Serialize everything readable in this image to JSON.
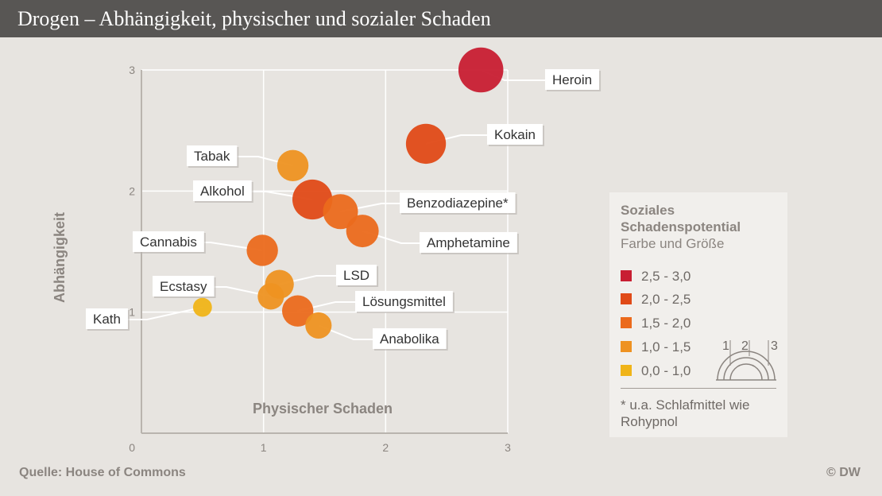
{
  "header": {
    "title": "Drogen – Abhängigkeit, physischer und sozialer Schaden"
  },
  "footer": {
    "source": "Quelle: House of Commons",
    "copyright": "© DW"
  },
  "legend": {
    "title": "Soziales Schadenspotential",
    "subtitle": "Farbe und Größe",
    "items": [
      {
        "label": "2,5 - 3,0",
        "color": "#c81e32"
      },
      {
        "label": "2,0 - 2,5",
        "color": "#e04a17"
      },
      {
        "label": "1,5 - 2,0",
        "color": "#eb6a1c"
      },
      {
        "label": "1,0 - 1,5",
        "color": "#ee9221"
      },
      {
        "label": "0,0 - 1,0",
        "color": "#f0b418"
      }
    ],
    "size_scale_labels": [
      "1",
      "2",
      "3"
    ],
    "note": "* u.a. Schlafmittel wie Rohypnol"
  },
  "chart_data": {
    "type": "scatter",
    "title": "Drogen – Abhängigkeit, physischer und sozialer Schaden",
    "xlabel": "Physischer Schaden",
    "ylabel": "Abhängigkeit",
    "xlim": [
      0,
      3
    ],
    "ylim": [
      0,
      3
    ],
    "x_ticks": [
      "0",
      "1",
      "2",
      "3"
    ],
    "y_ticks": [
      "1",
      "2",
      "3"
    ],
    "grid": true,
    "legend_placement": "right",
    "size_encodes": "Soziales Schadenspotential",
    "color_encodes": "Soziales Schadenspotential",
    "points": [
      {
        "label": "Heroin",
        "x": 2.78,
        "y": 3.0,
        "social": 2.6,
        "color": "#c81e32"
      },
      {
        "label": "Kokain",
        "x": 2.33,
        "y": 2.39,
        "social": 2.2,
        "color": "#e04a17"
      },
      {
        "label": "Tabak",
        "x": 1.24,
        "y": 2.21,
        "social": 1.5,
        "color": "#ee9221"
      },
      {
        "label": "Alkohol",
        "x": 1.4,
        "y": 1.93,
        "social": 2.2,
        "color": "#e04a17"
      },
      {
        "label": "Benzodiazepine*",
        "x": 1.63,
        "y": 1.83,
        "social": 1.8,
        "color": "#eb6a1c"
      },
      {
        "label": "Amphetamine",
        "x": 1.81,
        "y": 1.67,
        "social": 1.6,
        "color": "#eb6a1c"
      },
      {
        "label": "Cannabis",
        "x": 0.99,
        "y": 1.51,
        "social": 1.5,
        "color": "#eb6a1c"
      },
      {
        "label": "LSD",
        "x": 1.13,
        "y": 1.23,
        "social": 1.3,
        "color": "#ee9221"
      },
      {
        "label": "Ecstasy",
        "x": 1.06,
        "y": 1.13,
        "social": 1.1,
        "color": "#ee9221"
      },
      {
        "label": "Lösungsmittel",
        "x": 1.28,
        "y": 1.01,
        "social": 1.5,
        "color": "#eb6a1c"
      },
      {
        "label": "Anabolika",
        "x": 1.45,
        "y": 0.89,
        "social": 1.1,
        "color": "#ee9221"
      },
      {
        "label": "Kath",
        "x": 0.5,
        "y": 1.04,
        "social": 0.5,
        "color": "#f0b418"
      }
    ]
  }
}
